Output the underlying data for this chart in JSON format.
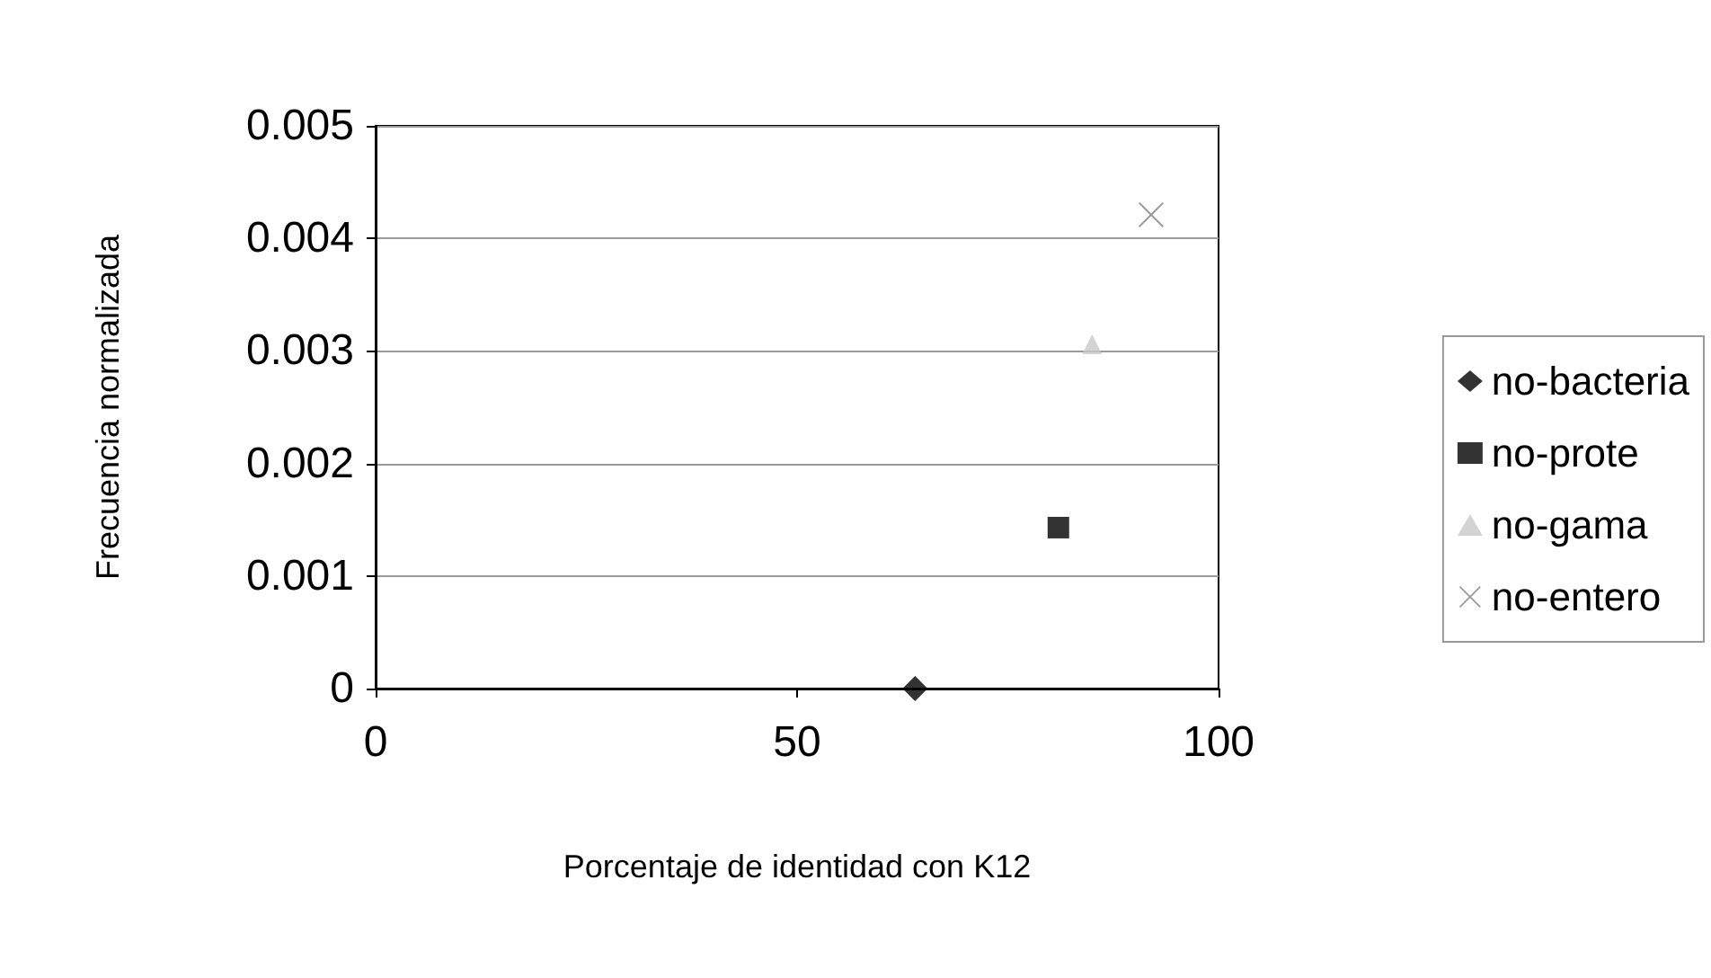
{
  "chart_data": {
    "type": "scatter",
    "xlabel": "Porcentaje de identidad con K12",
    "ylabel": "Frecuencia normalizada",
    "xlim": [
      0,
      100
    ],
    "xticks": [
      0,
      50,
      100
    ],
    "ylim": [
      0,
      0.005
    ],
    "yticks": [
      0,
      0.001,
      0.002,
      0.003,
      0.004,
      0.005
    ],
    "grid": "y",
    "legend": "right",
    "series": [
      {
        "name": "no-bacteria",
        "color": "#000000",
        "marker": "diamond",
        "x": [
          64
        ],
        "values": [
          0
        ]
      },
      {
        "name": "no-prote",
        "color": "#000000",
        "marker": "square",
        "x": [
          81
        ],
        "values": [
          0.00143
        ]
      },
      {
        "name": "no-gama",
        "color": "#c8c8c8",
        "marker": "triangle",
        "x": [
          85
        ],
        "values": [
          0.00306
        ]
      },
      {
        "name": "no-entero",
        "color": "#808080",
        "marker": "cross",
        "x": [
          92
        ],
        "values": [
          0.00421
        ]
      }
    ]
  }
}
